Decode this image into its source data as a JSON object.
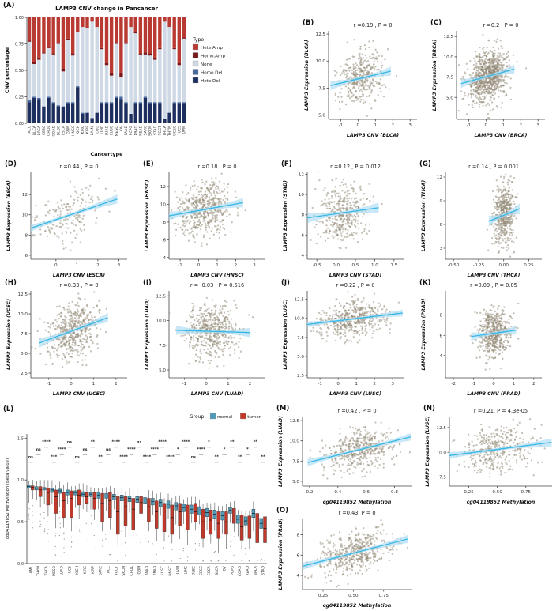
{
  "panel_labels": {
    "A": "(A)",
    "B": "(B)",
    "C": "(C)",
    "D": "(D)",
    "E": "(E)",
    "F": "(F)",
    "G": "(G)",
    "H": "(H)",
    "I": "(I)",
    "J": "(J)",
    "K": "(K)",
    "L": "(L)",
    "M": "(M)",
    "N": "(N)",
    "O": "(O)"
  },
  "chart_data": [
    {
      "id": "A",
      "type": "bar",
      "stacked": true,
      "title": "LAMP3 CNV change in Pancancer",
      "xlabel": "Cancertype",
      "ylabel": "CNV percentage",
      "ylim": [
        0,
        1
      ],
      "yticks": [
        "0.00",
        "0.25",
        "0.50",
        "0.75",
        "1.00"
      ],
      "legend_title": "Type",
      "categories": [
        "ACC",
        "BLCA",
        "BRCA",
        "CESC",
        "CHOL",
        "COAD",
        "DLBC",
        "ESCA",
        "GBM",
        "HNSC",
        "KICH",
        "KIRC",
        "KIRP",
        "LAML",
        "LGG",
        "LIHC",
        "LUAD",
        "LUSC",
        "MESO",
        "OV",
        "PAAD",
        "PCPG",
        "PRAD",
        "READ",
        "SARC",
        "SKCM",
        "STAD",
        "TGCT",
        "THCA",
        "THYM",
        "UCEC",
        "UCS",
        "UVM"
      ],
      "series": [
        {
          "name": "Hete.Amp",
          "color": "#b93a32",
          "values": [
            0.22,
            0.42,
            0.38,
            0.33,
            0.28,
            0.34,
            0.24,
            0.48,
            0.2,
            0.34,
            0.14,
            0.09,
            0.1,
            0.04,
            0.09,
            0.29,
            0.43,
            0.52,
            0.24,
            0.52,
            0.24,
            0.09,
            0.14,
            0.34,
            0.33,
            0.34,
            0.38,
            0.29,
            0.04,
            0.09,
            0.29,
            0.43,
            0.19
          ]
        },
        {
          "name": "Homo.Amp",
          "color": "#7a1719",
          "values": [
            0.01,
            0.02,
            0.02,
            0.01,
            0.01,
            0.01,
            0.01,
            0.03,
            0.01,
            0.02,
            0.0,
            0.0,
            0.0,
            0.0,
            0.0,
            0.01,
            0.02,
            0.03,
            0.01,
            0.04,
            0.01,
            0.0,
            0.01,
            0.01,
            0.02,
            0.02,
            0.02,
            0.01,
            0.0,
            0.0,
            0.01,
            0.02,
            0.01
          ]
        },
        {
          "name": "None",
          "color": "#cfd9e6",
          "values": [
            0.55,
            0.31,
            0.36,
            0.5,
            0.46,
            0.45,
            0.58,
            0.33,
            0.59,
            0.44,
            0.51,
            0.81,
            0.8,
            0.91,
            0.81,
            0.5,
            0.35,
            0.25,
            0.5,
            0.19,
            0.55,
            0.82,
            0.65,
            0.45,
            0.4,
            0.44,
            0.4,
            0.5,
            0.92,
            0.81,
            0.5,
            0.35,
            0.6
          ]
        },
        {
          "name": "Homo.Del",
          "color": "#46699e",
          "values": [
            0.02,
            0.01,
            0.01,
            0.01,
            0.01,
            0.01,
            0.01,
            0.01,
            0.01,
            0.01,
            0.01,
            0.01,
            0.0,
            0.0,
            0.0,
            0.01,
            0.01,
            0.01,
            0.01,
            0.02,
            0.01,
            0.0,
            0.01,
            0.01,
            0.01,
            0.01,
            0.01,
            0.01,
            0.0,
            0.0,
            0.01,
            0.01,
            0.01
          ]
        },
        {
          "name": "Hete.Del",
          "color": "#1d2f5e",
          "values": [
            0.2,
            0.24,
            0.23,
            0.15,
            0.24,
            0.19,
            0.16,
            0.15,
            0.19,
            0.19,
            0.34,
            0.09,
            0.1,
            0.05,
            0.1,
            0.19,
            0.19,
            0.19,
            0.24,
            0.23,
            0.19,
            0.09,
            0.19,
            0.19,
            0.24,
            0.19,
            0.19,
            0.19,
            0.04,
            0.1,
            0.19,
            0.19,
            0.19
          ]
        }
      ]
    },
    {
      "id": "B",
      "type": "scatter",
      "title": "r =0.19 , P = 0",
      "xlabel": "LAMP3 CNV (BLCA)",
      "ylabel": "LAMP3 Expression (BLCA)",
      "xlim": [
        -1.7,
        3.4
      ],
      "ylim": [
        4.6,
        12.8
      ],
      "xticks": [
        "-1",
        "0",
        "1",
        "2",
        "3"
      ],
      "yticks": [
        "5.0",
        "7.5",
        "10.0",
        "12.5"
      ],
      "n": 380,
      "r": 0.19,
      "x_center": 0.15,
      "x_spread": 0.62,
      "y_center": 8.4,
      "y_spread": 1.25,
      "seed": 11
    },
    {
      "id": "C",
      "type": "scatter",
      "title": "r =0.2 , P = 0",
      "xlabel": "LAMP3 CNV (BRCA)",
      "ylabel": "LAMP3 Expression (BRCA)",
      "xlim": [
        -1.7,
        3.4
      ],
      "ylim": [
        2.3,
        13.2
      ],
      "xticks": [
        "-1",
        "0",
        "1",
        "2",
        "3"
      ],
      "yticks": [
        "5.0",
        "7.5",
        "10.0",
        "12.5"
      ],
      "n": 850,
      "r": 0.2,
      "x_center": 0.1,
      "x_spread": 0.55,
      "y_center": 7.6,
      "y_spread": 1.6,
      "seed": 12
    },
    {
      "id": "D",
      "type": "scatter",
      "title": "r =0.44 , P = 0",
      "xlabel": "LAMP3 CNV (ESCA)",
      "ylabel": "LAMP3 Expression (ESCA)",
      "xlim": [
        -1.2,
        3.4
      ],
      "ylim": [
        5.6,
        14.2
      ],
      "xticks": [
        "0",
        "1",
        "2",
        "3"
      ],
      "yticks": [
        "6",
        "8",
        "10",
        "12"
      ],
      "n": 180,
      "r": 0.44,
      "x_center": 0.55,
      "x_spread": 0.85,
      "y_center": 9.9,
      "y_spread": 1.35,
      "seed": 13
    },
    {
      "id": "E",
      "type": "scatter",
      "title": "r =0.18 , P = 0",
      "xlabel": "LAMP3 CNV (HNSC)",
      "ylabel": "LAMP3 Expression (HNSC)",
      "xlim": [
        -1.6,
        3.6
      ],
      "ylim": [
        3.8,
        13.6
      ],
      "xticks": [
        "-1",
        "0",
        "1",
        "2",
        "3"
      ],
      "yticks": [
        "4",
        "6",
        "8",
        "10",
        "12"
      ],
      "n": 500,
      "r": 0.18,
      "x_center": 0.3,
      "x_spread": 0.75,
      "y_center": 9.4,
      "y_spread": 1.55,
      "seed": 14
    },
    {
      "id": "F",
      "type": "scatter",
      "title": "r =0.12 , P = 0.012",
      "xlabel": "LAMP3 CNV (STAD)",
      "ylabel": "LAMP3 Expression (STAD)",
      "xlim": [
        -0.75,
        1.75
      ],
      "ylim": [
        3.6,
        12.2
      ],
      "xticks": [
        "-0.5",
        "0.0",
        "0.5",
        "1.0",
        "1.5"
      ],
      "yticks": [
        "4",
        "6",
        "8",
        "10",
        "12"
      ],
      "n": 370,
      "r": 0.12,
      "x_center": 0.18,
      "x_spread": 0.33,
      "y_center": 8.2,
      "y_spread": 1.5,
      "seed": 15
    },
    {
      "id": "G",
      "type": "scatter",
      "title": "r =0.14 , P = 0.001",
      "xlabel": "LAMP3 CNV (THCA)",
      "ylabel": "LAMP3 Expression (THCA)",
      "xlim": [
        -0.58,
        0.38
      ],
      "ylim": [
        1.6,
        12.6
      ],
      "xticks": [
        "-0.50",
        "-0.25",
        "0.00",
        "0.25"
      ],
      "yticks": [
        "3",
        "6",
        "9",
        "12"
      ],
      "n": 500,
      "r": 0.14,
      "x_center": 0.005,
      "x_spread": 0.055,
      "y_center": 7.2,
      "y_spread": 2.0,
      "seed": 16
    },
    {
      "id": "H",
      "type": "scatter",
      "title": "r =0.33 , P = 0",
      "xlabel": "LAMP3 CNV (UCEC)",
      "ylabel": "LAMP3 Expression (UCEC)",
      "xlim": [
        -1.8,
        2.5
      ],
      "ylim": [
        1.9,
        12.9
      ],
      "xticks": [
        "-1",
        "0",
        "1",
        "2"
      ],
      "yticks": [
        "2.5",
        "5.0",
        "7.5",
        "10.0",
        "12.5"
      ],
      "n": 520,
      "r": 0.33,
      "x_center": 0.1,
      "x_spread": 0.55,
      "y_center": 7.9,
      "y_spread": 1.75,
      "seed": 17
    },
    {
      "id": "I",
      "type": "scatter",
      "title": "r = -0.03 , P = 0.516",
      "xlabel": "LAMP3 CNV (LUAD)",
      "ylabel": "LAMP3 Expression (LUAD)",
      "xlim": [
        -1.7,
        2.7
      ],
      "ylim": [
        4.2,
        13.0
      ],
      "xticks": [
        "-1",
        "0",
        "1",
        "2"
      ],
      "yticks": [
        "5.0",
        "7.5",
        "10.0",
        "12.5"
      ],
      "n": 500,
      "r": -0.03,
      "x_center": 0.3,
      "x_spread": 0.6,
      "y_center": 8.9,
      "y_spread": 1.35,
      "seed": 18
    },
    {
      "id": "J",
      "type": "scatter",
      "title": "r =0.22 , P = 0",
      "xlabel": "LAMP3 CNV (LUSC)",
      "ylabel": "LAMP3 Expression (LUSC)",
      "xlim": [
        -1.7,
        3.6
      ],
      "ylim": [
        2.2,
        13.6
      ],
      "xticks": [
        "-1",
        "0",
        "1",
        "2",
        "3"
      ],
      "yticks": [
        "2.5",
        "5.0",
        "7.5",
        "10.0",
        "12.5"
      ],
      "n": 490,
      "r": 0.22,
      "x_center": 0.75,
      "x_spread": 1.0,
      "y_center": 9.9,
      "y_spread": 1.3,
      "seed": 19
    },
    {
      "id": "K",
      "type": "scatter",
      "title": "r =0.09 , P = 0.05",
      "xlabel": "LAMP3 CNV (PRAD)",
      "ylabel": "LAMP3 Expression (PRAD)",
      "xlim": [
        -2.4,
        2.4
      ],
      "ylim": [
        1.8,
        10.4
      ],
      "xticks": [
        "-2",
        "-1",
        "0",
        "1",
        "2"
      ],
      "yticks": [
        "4",
        "6",
        "8"
      ],
      "n": 490,
      "r": 0.09,
      "x_center": 0.0,
      "x_spread": 0.4,
      "y_center": 6.2,
      "y_spread": 1.25,
      "seed": 20
    },
    {
      "id": "L",
      "type": "boxplot",
      "ylabel": "cg04119852 Methylation (Beta value)",
      "ylim": [
        0,
        1.55
      ],
      "yticks": [
        "0.0",
        "0.5",
        "1.0",
        "1.5"
      ],
      "legend_title": "Group",
      "groups": [
        {
          "name": "normal",
          "color": "#4f9bb8"
        },
        {
          "name": "tumor",
          "color": "#c0392b"
        }
      ],
      "categories": [
        "LAML",
        "THYM",
        "THCA",
        "MESO",
        "LUAD",
        "UCS",
        "KICH",
        "KIRC",
        "KIRP",
        "SARC",
        "ACC",
        "TGCT",
        "SKCM",
        "CHOL",
        "GBM",
        "PAAD",
        "PRAD",
        "LUSC",
        "HNSC",
        "UVM",
        "LIHC",
        "DLBC",
        "CESC",
        "ESCA",
        "BLCA",
        "OV",
        "PCPG",
        "COAD",
        "READ",
        "BRCA",
        "STAD"
      ],
      "sig": [
        "ns",
        "ns",
        "****",
        "***",
        "****",
        "ns",
        "ns",
        "ns",
        "**",
        "**",
        "ns",
        "****",
        "****",
        "****",
        "ns",
        "****",
        "****",
        "****",
        "****",
        "*",
        "****",
        "ns",
        "****",
        "*",
        "**",
        "*",
        "**",
        "**",
        "*",
        "**",
        "**"
      ],
      "normal": [
        [
          0.9,
          0.92,
          0.94
        ],
        [
          0.88,
          0.9,
          0.92
        ],
        [
          0.88,
          0.9,
          0.91
        ],
        [
          0.85,
          0.88,
          0.9
        ],
        [
          0.84,
          0.87,
          0.89
        ],
        [
          0.82,
          0.85,
          0.88
        ],
        [
          0.82,
          0.85,
          0.87
        ],
        [
          0.8,
          0.83,
          0.86
        ],
        [
          0.8,
          0.83,
          0.85
        ],
        [
          0.78,
          0.82,
          0.85
        ],
        [
          0.78,
          0.81,
          0.84
        ],
        [
          0.76,
          0.8,
          0.83
        ],
        [
          0.75,
          0.79,
          0.82
        ],
        [
          0.74,
          0.78,
          0.81
        ],
        [
          0.73,
          0.77,
          0.8
        ],
        [
          0.72,
          0.76,
          0.79
        ],
        [
          0.7,
          0.74,
          0.78
        ],
        [
          0.68,
          0.73,
          0.77
        ],
        [
          0.66,
          0.71,
          0.75
        ],
        [
          0.64,
          0.69,
          0.73
        ],
        [
          0.62,
          0.67,
          0.71
        ],
        [
          0.6,
          0.65,
          0.7
        ],
        [
          0.58,
          0.63,
          0.68
        ],
        [
          0.56,
          0.61,
          0.66
        ],
        [
          0.54,
          0.59,
          0.64
        ],
        [
          0.52,
          0.57,
          0.62
        ],
        [
          0.6,
          0.64,
          0.67
        ],
        [
          0.48,
          0.53,
          0.58
        ],
        [
          0.46,
          0.51,
          0.56
        ],
        [
          0.55,
          0.6,
          0.65
        ],
        [
          0.42,
          0.48,
          0.54
        ]
      ],
      "tumor": [
        [
          0.88,
          0.91,
          0.93
        ],
        [
          0.8,
          0.88,
          0.92
        ],
        [
          0.7,
          0.85,
          0.9
        ],
        [
          0.6,
          0.8,
          0.88
        ],
        [
          0.55,
          0.75,
          0.85
        ],
        [
          0.55,
          0.78,
          0.87
        ],
        [
          0.7,
          0.82,
          0.88
        ],
        [
          0.72,
          0.8,
          0.85
        ],
        [
          0.65,
          0.78,
          0.85
        ],
        [
          0.5,
          0.72,
          0.84
        ],
        [
          0.55,
          0.75,
          0.85
        ],
        [
          0.35,
          0.62,
          0.8
        ],
        [
          0.45,
          0.68,
          0.8
        ],
        [
          0.4,
          0.65,
          0.78
        ],
        [
          0.6,
          0.73,
          0.8
        ],
        [
          0.5,
          0.68,
          0.78
        ],
        [
          0.42,
          0.62,
          0.75
        ],
        [
          0.38,
          0.58,
          0.72
        ],
        [
          0.35,
          0.55,
          0.7
        ],
        [
          0.45,
          0.62,
          0.72
        ],
        [
          0.4,
          0.58,
          0.7
        ],
        [
          0.5,
          0.62,
          0.72
        ],
        [
          0.3,
          0.5,
          0.65
        ],
        [
          0.35,
          0.52,
          0.64
        ],
        [
          0.3,
          0.48,
          0.62
        ],
        [
          0.35,
          0.5,
          0.62
        ],
        [
          0.48,
          0.58,
          0.66
        ],
        [
          0.28,
          0.44,
          0.58
        ],
        [
          0.3,
          0.45,
          0.57
        ],
        [
          0.25,
          0.45,
          0.6
        ],
        [
          0.25,
          0.42,
          0.56
        ]
      ]
    },
    {
      "id": "M",
      "type": "scatter",
      "title": "r =0.42 , P = 0",
      "xlabel": "cg04119852 Methylation",
      "ylabel": "LAMP3 Expression (LUAD)",
      "xlim": [
        0.15,
        0.92
      ],
      "ylim": [
        4.4,
        13.0
      ],
      "xticks": [
        "0.2",
        "0.4",
        "0.6",
        "0.8"
      ],
      "yticks": [
        "5.0",
        "7.5",
        "10.0",
        "12.5"
      ],
      "n": 450,
      "r": 0.42,
      "x_center": 0.55,
      "x_spread": 0.13,
      "y_center": 8.9,
      "y_spread": 1.35,
      "seed": 21
    },
    {
      "id": "N",
      "type": "scatter",
      "title": "r =0.21, P = 4.3e-05",
      "xlabel": "cg04119852 Methylation",
      "ylabel": "LAMP3 Expression (LUSC)",
      "xlim": [
        0.08,
        0.98
      ],
      "ylim": [
        6.6,
        13.6
      ],
      "xticks": [
        "0.25",
        "0.50",
        "0.75"
      ],
      "yticks": [
        "7.5",
        "10.0",
        "12.5"
      ],
      "n": 370,
      "r": 0.21,
      "x_center": 0.5,
      "x_spread": 0.17,
      "y_center": 10.3,
      "y_spread": 1.2,
      "seed": 22
    },
    {
      "id": "O",
      "type": "scatter",
      "title": "r =0.43, P = 0",
      "xlabel": "cg04119852 Methylation",
      "ylabel": "LAMP3 Expression (PRAD)",
      "xlim": [
        0.08,
        0.98
      ],
      "ylim": [
        2.6,
        9.6
      ],
      "xticks": [
        "0.25",
        "0.50",
        "0.75"
      ],
      "yticks": [
        "4",
        "6",
        "8"
      ],
      "n": 490,
      "r": 0.43,
      "x_center": 0.5,
      "x_spread": 0.16,
      "y_center": 6.2,
      "y_spread": 1.15,
      "seed": 23
    }
  ]
}
